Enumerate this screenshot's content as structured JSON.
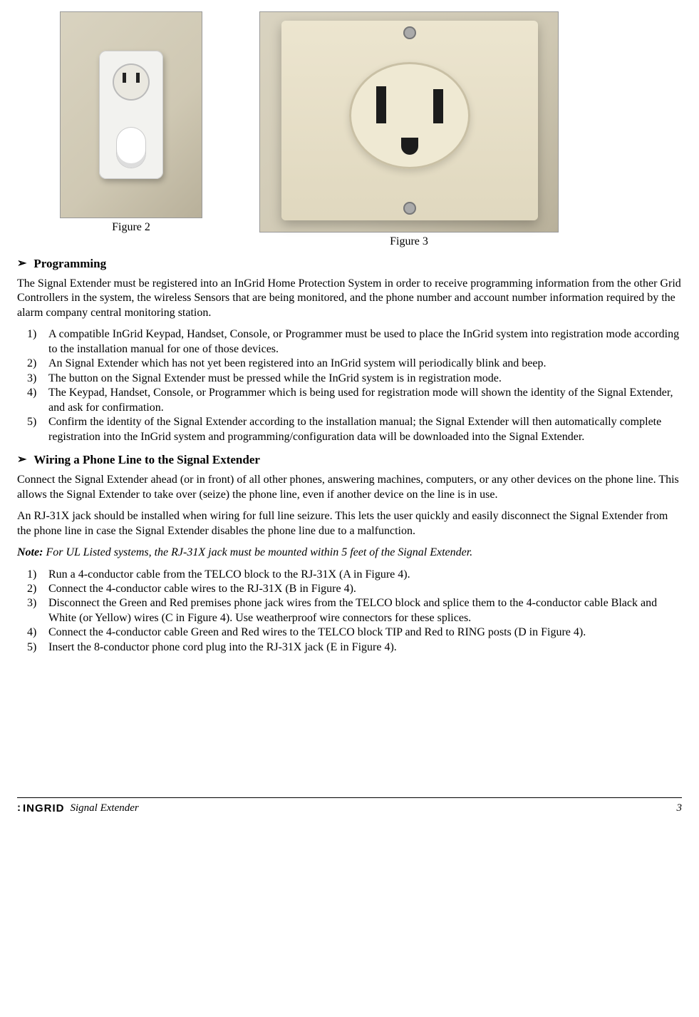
{
  "figures": {
    "fig2_caption": "Figure 2",
    "fig3_caption": "Figure 3"
  },
  "section1": {
    "heading": "Programming",
    "intro": "The Signal Extender must be registered into an InGrid Home Protection System in order to receive programming information from the other Grid Controllers in the system, the wireless Sensors that are being monitored, and the phone number and account number information required by the alarm company central monitoring station.",
    "items": [
      "A compatible InGrid Keypad, Handset, Console, or Programmer must be used to place the InGrid system into registration mode according to the installation manual for one of those devices.",
      "An Signal Extender which has not yet been registered into an InGrid system will periodically blink and beep.",
      "The button on the Signal Extender must be pressed while the InGrid system is in registration mode.",
      "The Keypad, Handset, Console, or Programmer which is being used for registration mode will shown the identity of the Signal Extender, and ask for confirmation.",
      "Confirm the identity of the Signal Extender according to the installation manual; the Signal Extender will then automatically complete registration into the InGrid system and programming/configuration data will be downloaded into the Signal Extender."
    ]
  },
  "section2": {
    "heading": "Wiring a Phone Line to the Signal Extender",
    "para1": "Connect the Signal Extender ahead (or in front) of all other phones, answering machines, computers, or any other devices on the phone line. This allows the Signal Extender to take over (seize) the phone line, even if another device on the line is in use.",
    "para2": "An RJ-31X jack should be installed when wiring for full line seizure. This lets the user quickly and easily disconnect the Signal Extender from the phone line in case the Signal Extender disables the phone line due to a malfunction.",
    "note_label": "Note:",
    "note_text": " For UL Listed systems, the RJ-31X jack must be mounted within 5 feet of the Signal Extender.",
    "items": [
      "Run a 4-conductor cable from the TELCO block to the RJ-31X (A in Figure 4).",
      "Connect the 4-conductor cable wires to the RJ-31X (B in Figure 4).",
      "Disconnect the Green and Red premises phone jack wires from the TELCO block and splice them to the 4-conductor cable Black and White (or Yellow) wires (C in Figure 4). Use weatherproof wire connectors for these splices.",
      "Connect the 4-conductor cable Green and Red wires to the TELCO block TIP and Red to RING posts (D in Figure 4).",
      "Insert the 8-conductor phone cord plug into the RJ-31X jack (E in Figure 4)."
    ]
  },
  "footer": {
    "logo_text": "INGRID",
    "doc_title": "Signal Extender",
    "page_number": "3"
  }
}
